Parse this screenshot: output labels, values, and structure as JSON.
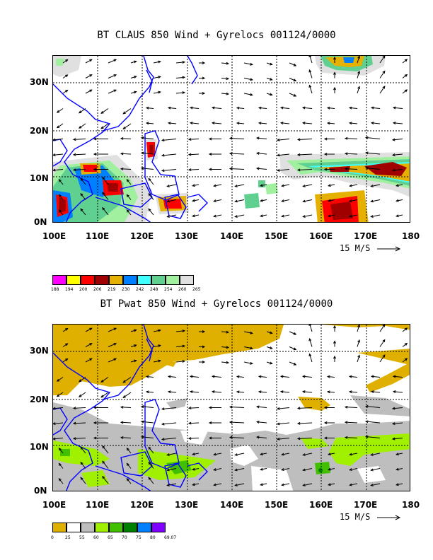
{
  "top": {
    "title": "BT CLAUS 850 Wind + Gyrelocs 001124/0000",
    "lat_labels": [
      "30N",
      "20N",
      "10N",
      "0N"
    ],
    "lon_labels": [
      "100E",
      "110E",
      "120E",
      "130E",
      "140E",
      "150E",
      "160E",
      "170E",
      "180"
    ],
    "scale_label": "15 M/S",
    "colorbar": {
      "colors": [
        "#ff00ff",
        "#ffff00",
        "#ff0000",
        "#a00000",
        "#e6b000",
        "#0080ff",
        "#40ffff",
        "#60d090",
        "#a0f0a0",
        "#e0e0e0"
      ],
      "labels": [
        "188",
        "194",
        "200",
        "206",
        "219",
        "230",
        "242",
        "248",
        "254",
        "260",
        "265"
      ]
    }
  },
  "bottom": {
    "title": "BT Pwat 850 Wind + Gyrelocs 001124/0000",
    "lat_labels": [
      "30N",
      "20N",
      "10N",
      "0N"
    ],
    "lon_labels": [
      "100E",
      "110E",
      "120E",
      "130E",
      "140E",
      "150E",
      "160E",
      "170E",
      "180"
    ],
    "scale_label": "15 M/S",
    "colorbar": {
      "colors": [
        "#e0b000",
        "#ffffff",
        "#bebebe",
        "#a0f000",
        "#40c000",
        "#008000",
        "#0080ff",
        "#8000ff"
      ],
      "labels": [
        "0",
        "25",
        "55",
        "60",
        "65",
        "70",
        "75",
        "80",
        "69.07"
      ]
    }
  },
  "colors": {
    "coast": "#0000ff",
    "grid": "#000000",
    "arrow": "#000000"
  }
}
